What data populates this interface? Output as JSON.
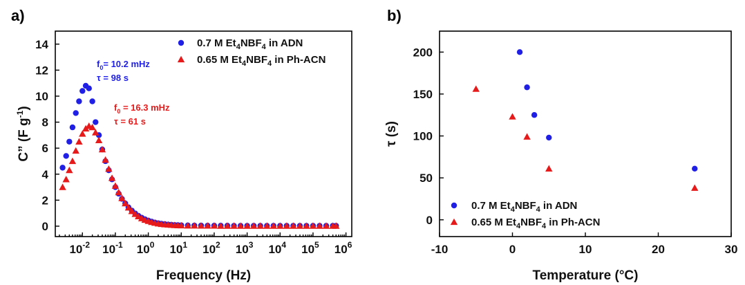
{
  "chart_data": [
    {
      "panel_label": "a)",
      "type": "scatter",
      "xlabel": "Frequency (Hz)",
      "ylabel_main": "C” (F g",
      "ylabel_sup": "-1",
      "ylabel_end": ")",
      "x_scale": "log",
      "xlim": [
        0.0015,
        1500000
      ],
      "ylim": [
        -0.8,
        15
      ],
      "x_tick_exponents": [
        -2,
        -1,
        0,
        1,
        2,
        3,
        4,
        5,
        6
      ],
      "x_tick_base": "10",
      "y_ticks": [
        0,
        2,
        4,
        6,
        8,
        10,
        12,
        14
      ],
      "grid": false,
      "legend_position": "top-right",
      "series": [
        {
          "name_prefix": "0.7 M Et",
          "name_sub": "4",
          "name_mid": "NBF",
          "name_sub2": "4",
          "name_suffix": " in ADN",
          "marker": "circle",
          "color": "#1f1fe6",
          "x": [
            0.0025,
            0.0032,
            0.004,
            0.005,
            0.0063,
            0.0079,
            0.01,
            0.0126,
            0.0158,
            0.02,
            0.025,
            0.0316,
            0.04,
            0.05,
            0.063,
            0.079,
            0.1,
            0.126,
            0.158,
            0.2,
            0.25,
            0.316,
            0.4,
            0.5,
            0.63,
            0.79,
            1,
            1.26,
            1.58,
            2,
            2.5,
            3.16,
            4,
            5,
            6.3,
            7.9,
            10,
            15.8,
            25,
            40,
            63,
            100,
            158,
            251,
            398,
            631,
            1000,
            1585,
            2512,
            3981,
            6310,
            10000,
            15849,
            25119,
            39811,
            63096,
            100000,
            158489,
            251189,
            398107,
            500000
          ],
          "y": [
            4.5,
            5.4,
            6.5,
            7.6,
            8.7,
            9.6,
            10.4,
            10.8,
            10.6,
            9.6,
            8.0,
            7.0,
            5.9,
            5.0,
            4.3,
            3.6,
            3.0,
            2.5,
            2.1,
            1.75,
            1.45,
            1.2,
            0.98,
            0.8,
            0.65,
            0.53,
            0.43,
            0.35,
            0.28,
            0.23,
            0.19,
            0.16,
            0.13,
            0.11,
            0.09,
            0.08,
            0.07,
            0.06,
            0.05,
            0.05,
            0.04,
            0.04,
            0.04,
            0.04,
            0.03,
            0.03,
            0.03,
            0.03,
            0.03,
            0.03,
            0.03,
            0.03,
            0.03,
            0.03,
            0.03,
            0.03,
            0.03,
            0.03,
            0.03,
            0.03,
            0.03
          ]
        },
        {
          "name_prefix": "0.65 M Et",
          "name_sub": "4",
          "name_mid": "NBF",
          "name_sub2": "4",
          "name_suffix": " in Ph-ACN",
          "marker": "triangle",
          "color": "#e61a1a",
          "x": [
            0.0025,
            0.0032,
            0.004,
            0.005,
            0.0063,
            0.0079,
            0.01,
            0.0126,
            0.0158,
            0.02,
            0.025,
            0.0316,
            0.04,
            0.05,
            0.063,
            0.079,
            0.1,
            0.126,
            0.158,
            0.2,
            0.25,
            0.316,
            0.4,
            0.5,
            0.63,
            0.79,
            1,
            1.26,
            1.58,
            2,
            2.5,
            3.16,
            4,
            5,
            6.3,
            7.9,
            10,
            15.8,
            25,
            40,
            63,
            100,
            158,
            251,
            398,
            631,
            1000,
            1585,
            2512,
            3981,
            6310,
            10000,
            15849,
            25119,
            39811,
            63096,
            100000,
            158489,
            251189,
            398107,
            500000
          ],
          "y": [
            3.0,
            3.6,
            4.3,
            5.0,
            5.8,
            6.5,
            7.1,
            7.5,
            7.7,
            7.6,
            7.2,
            6.6,
            5.9,
            5.1,
            4.4,
            3.7,
            3.1,
            2.6,
            2.15,
            1.75,
            1.42,
            1.15,
            0.93,
            0.75,
            0.6,
            0.48,
            0.39,
            0.31,
            0.25,
            0.2,
            0.16,
            0.13,
            0.11,
            0.09,
            0.07,
            0.06,
            0.05,
            0.04,
            0.04,
            0.03,
            0.03,
            0.03,
            0.02,
            0.02,
            0.02,
            0.02,
            0.02,
            0.02,
            0.02,
            0.02,
            0.02,
            0.02,
            0.02,
            0.02,
            0.02,
            0.02,
            0.02,
            0.02,
            0.02,
            0.02,
            0.02
          ]
        }
      ],
      "annotations": [
        {
          "f_label": "f",
          "f_sub": "0",
          "f_value": "=  10.2 mHz",
          "tau": "τ = 98 s",
          "color": "#1f1fe6"
        },
        {
          "f_label": "f",
          "f_sub": "0",
          "f_value": " = 16.3 mHz",
          "tau": "τ = 61 s",
          "color": "#e61a1a"
        }
      ]
    },
    {
      "panel_label": "b)",
      "type": "scatter",
      "xlabel": "Temperature (°C)",
      "ylabel": "τ (s)",
      "xlim": [
        -10,
        30
      ],
      "ylim": [
        -20,
        225
      ],
      "x_ticks": [
        -10,
        0,
        10,
        20,
        30
      ],
      "y_ticks": [
        0,
        50,
        100,
        150,
        200
      ],
      "grid": false,
      "legend_position": "bottom-left",
      "series": [
        {
          "name_prefix": "0.7 M Et",
          "name_sub": "4",
          "name_mid": "NBF",
          "name_sub2": "4",
          "name_suffix": " in ADN",
          "marker": "circle",
          "color": "#1f1fe6",
          "x": [
            1,
            2,
            3,
            5,
            25
          ],
          "y": [
            200,
            158,
            125,
            98,
            61
          ]
        },
        {
          "name_prefix": "0.65 M Et",
          "name_sub": "4",
          "name_mid": "NBF",
          "name_sub2": "4",
          "name_suffix": " in Ph-ACN",
          "marker": "triangle",
          "color": "#e61a1a",
          "x": [
            -5,
            0,
            2,
            5,
            25
          ],
          "y": [
            156,
            123,
            99,
            61,
            38
          ]
        }
      ]
    }
  ]
}
